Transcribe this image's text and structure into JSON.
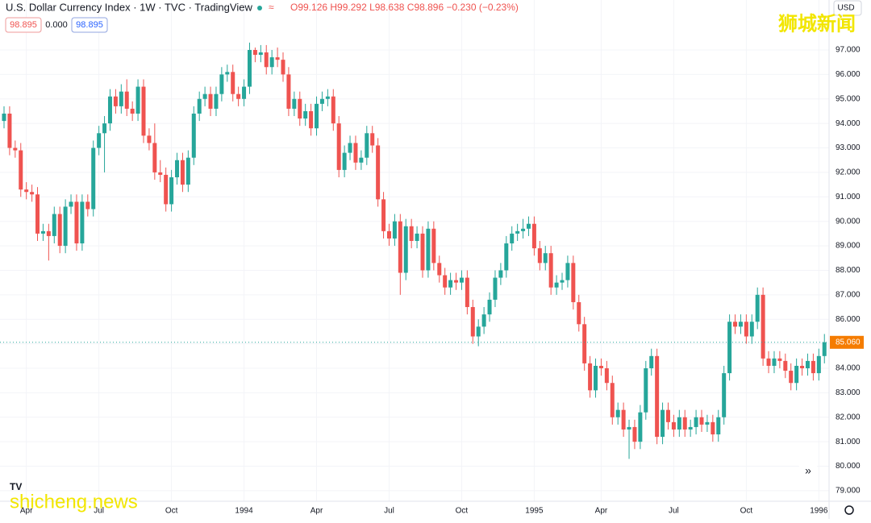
{
  "chart_data": {
    "type": "candlestick",
    "title": "U.S. Dollar Currency Index · 1W · TVC · TradingView",
    "ohlc_text": "O99.126 H99.292 L98.638 C98.896 −0.230 (−0.23%)",
    "boxes": [
      "98.895",
      "0.000",
      "98.895"
    ],
    "currency": "USD",
    "last_label": "85.060",
    "watermark_cn": "狮城新闻",
    "watermark_en": "shicheng.news",
    "up_color": "#26a69a",
    "down_color": "#ef5350",
    "grid": true,
    "ylim": [
      78.57,
      99.04
    ],
    "yticks": [
      {
        "value": 79,
        "label": "79.000"
      },
      {
        "value": 80,
        "label": "80.000"
      },
      {
        "value": 81,
        "label": "81.000"
      },
      {
        "value": 82,
        "label": "82.000"
      },
      {
        "value": 83,
        "label": "83.000"
      },
      {
        "value": 84,
        "label": "84.000"
      },
      {
        "value": 85,
        "label": "85.000"
      },
      {
        "value": 86,
        "label": "86.000"
      },
      {
        "value": 87,
        "label": "87.000"
      },
      {
        "value": 88,
        "label": "88.000"
      },
      {
        "value": 89,
        "label": "89.000"
      },
      {
        "value": 90,
        "label": "90.000"
      },
      {
        "value": 91,
        "label": "91.000"
      },
      {
        "value": 92,
        "label": "92.000"
      },
      {
        "value": 93,
        "label": "93.000"
      },
      {
        "value": 94,
        "label": "94.000"
      },
      {
        "value": 95,
        "label": "95.000"
      },
      {
        "value": 96,
        "label": "96.000"
      },
      {
        "value": 97,
        "label": "97.000"
      }
    ],
    "categories": [
      null,
      null,
      null,
      null,
      "Apr",
      null,
      null,
      null,
      null,
      null,
      null,
      null,
      null,
      null,
      null,
      null,
      null,
      "Jul",
      null,
      null,
      null,
      null,
      null,
      null,
      null,
      null,
      null,
      null,
      null,
      null,
      "Oct",
      null,
      null,
      null,
      null,
      null,
      null,
      null,
      null,
      null,
      null,
      null,
      null,
      "1994",
      null,
      null,
      null,
      null,
      null,
      null,
      null,
      null,
      null,
      null,
      null,
      null,
      "Apr",
      null,
      null,
      null,
      null,
      null,
      null,
      null,
      null,
      null,
      null,
      null,
      null,
      "Jul",
      null,
      null,
      null,
      null,
      null,
      null,
      null,
      null,
      null,
      null,
      null,
      null,
      "Oct",
      null,
      null,
      null,
      null,
      null,
      null,
      null,
      null,
      null,
      null,
      null,
      null,
      "1995",
      null,
      null,
      null,
      null,
      null,
      null,
      null,
      null,
      null,
      null,
      null,
      "Apr",
      null,
      null,
      null,
      null,
      null,
      null,
      null,
      null,
      null,
      null,
      null,
      null,
      "Jul",
      null,
      null,
      null,
      null,
      null,
      null,
      null,
      null,
      null,
      null,
      null,
      null,
      "Oct",
      null,
      null,
      null,
      null,
      null,
      null,
      null,
      null,
      null,
      null,
      null,
      null,
      "1996",
      null
    ],
    "candles": [
      [
        94.1,
        94.7,
        93.8,
        94.4
      ],
      [
        94.4,
        94.7,
        92.7,
        93.0
      ],
      [
        93.0,
        93.3,
        92.6,
        92.9
      ],
      [
        92.9,
        93.2,
        91.0,
        91.3
      ],
      [
        91.3,
        91.6,
        90.9,
        91.2
      ],
      [
        91.2,
        91.5,
        90.8,
        91.1
      ],
      [
        91.1,
        91.4,
        89.2,
        89.5
      ],
      [
        89.5,
        89.9,
        89.2,
        89.6
      ],
      [
        89.6,
        89.9,
        88.4,
        89.4
      ],
      [
        89.4,
        90.6,
        89.1,
        90.3
      ],
      [
        90.3,
        90.6,
        88.7,
        89.0
      ],
      [
        89.0,
        90.9,
        88.7,
        90.6
      ],
      [
        90.6,
        91.1,
        90.3,
        90.8
      ],
      [
        90.8,
        91.1,
        88.8,
        89.1
      ],
      [
        89.1,
        91.1,
        88.8,
        90.8
      ],
      [
        90.8,
        91.1,
        90.2,
        90.5
      ],
      [
        90.5,
        93.3,
        90.2,
        93.0
      ],
      [
        93.0,
        93.9,
        92.7,
        93.6
      ],
      [
        93.6,
        94.3,
        92.0,
        94.0
      ],
      [
        94.0,
        95.4,
        93.7,
        95.1
      ],
      [
        95.1,
        95.4,
        94.4,
        94.7
      ],
      [
        94.7,
        95.6,
        94.4,
        95.3
      ],
      [
        95.3,
        95.8,
        94.3,
        94.6
      ],
      [
        94.6,
        94.9,
        94.1,
        94.4
      ],
      [
        94.4,
        95.8,
        94.1,
        95.5
      ],
      [
        95.5,
        95.8,
        93.2,
        93.5
      ],
      [
        93.5,
        93.8,
        92.9,
        93.2
      ],
      [
        93.2,
        94.0,
        91.7,
        92.0
      ],
      [
        92.0,
        92.5,
        91.6,
        91.9
      ],
      [
        91.9,
        92.2,
        90.4,
        90.7
      ],
      [
        90.7,
        92.1,
        90.4,
        91.8
      ],
      [
        91.8,
        92.8,
        91.5,
        92.5
      ],
      [
        92.5,
        92.8,
        91.2,
        91.5
      ],
      [
        91.5,
        92.9,
        91.2,
        92.6
      ],
      [
        92.6,
        94.7,
        92.3,
        94.4
      ],
      [
        94.4,
        95.3,
        94.1,
        95.0
      ],
      [
        95.0,
        95.5,
        94.7,
        95.2
      ],
      [
        95.2,
        95.5,
        94.3,
        94.6
      ],
      [
        94.6,
        95.5,
        94.3,
        95.2
      ],
      [
        95.2,
        96.3,
        94.9,
        96.0
      ],
      [
        96.0,
        96.4,
        95.7,
        96.1
      ],
      [
        96.1,
        96.4,
        94.9,
        95.2
      ],
      [
        95.2,
        95.5,
        94.7,
        95.0
      ],
      [
        95.0,
        95.8,
        94.7,
        95.5
      ],
      [
        95.5,
        97.3,
        95.2,
        97.0
      ],
      [
        97.0,
        97.1,
        96.5,
        96.8
      ],
      [
        96.8,
        97.2,
        96.5,
        96.9
      ],
      [
        96.9,
        97.2,
        96.0,
        96.3
      ],
      [
        96.3,
        97.0,
        96.0,
        96.7
      ],
      [
        96.7,
        97.1,
        96.3,
        96.6
      ],
      [
        96.6,
        96.9,
        95.7,
        96.0
      ],
      [
        96.0,
        96.3,
        94.3,
        94.6
      ],
      [
        94.6,
        95.3,
        94.3,
        95.0
      ],
      [
        95.0,
        95.3,
        93.9,
        94.2
      ],
      [
        94.2,
        94.8,
        93.9,
        94.5
      ],
      [
        94.5,
        94.8,
        93.5,
        93.8
      ],
      [
        93.8,
        95.1,
        93.5,
        94.8
      ],
      [
        94.8,
        95.3,
        94.5,
        95.0
      ],
      [
        95.0,
        95.4,
        94.7,
        95.1
      ],
      [
        95.1,
        95.4,
        93.7,
        94.0
      ],
      [
        94.0,
        94.3,
        91.8,
        92.1
      ],
      [
        92.1,
        93.1,
        91.8,
        92.8
      ],
      [
        92.8,
        93.5,
        92.5,
        93.2
      ],
      [
        93.2,
        93.5,
        92.1,
        92.4
      ],
      [
        92.4,
        92.9,
        92.1,
        92.6
      ],
      [
        92.6,
        93.9,
        92.3,
        93.6
      ],
      [
        93.6,
        93.9,
        92.8,
        93.1
      ],
      [
        93.1,
        93.4,
        90.6,
        90.9
      ],
      [
        90.9,
        91.2,
        89.3,
        89.6
      ],
      [
        89.6,
        89.9,
        89.0,
        89.3
      ],
      [
        89.3,
        90.3,
        89.0,
        90.0
      ],
      [
        90.0,
        90.3,
        87.0,
        87.9
      ],
      [
        87.9,
        90.1,
        87.6,
        89.8
      ],
      [
        89.8,
        90.1,
        88.9,
        89.2
      ],
      [
        89.2,
        89.8,
        88.9,
        89.5
      ],
      [
        89.5,
        89.8,
        87.7,
        88.0
      ],
      [
        88.0,
        90.0,
        87.7,
        89.7
      ],
      [
        89.7,
        90.0,
        88.0,
        88.3
      ],
      [
        88.3,
        88.6,
        87.5,
        87.8
      ],
      [
        87.8,
        88.1,
        87.0,
        87.3
      ],
      [
        87.3,
        87.9,
        87.0,
        87.6
      ],
      [
        87.6,
        87.9,
        87.2,
        87.5
      ],
      [
        87.5,
        88.0,
        87.2,
        87.7
      ],
      [
        87.7,
        88.0,
        86.2,
        86.5
      ],
      [
        86.5,
        86.8,
        85.0,
        85.3
      ],
      [
        85.3,
        86.0,
        84.9,
        85.7
      ],
      [
        85.7,
        86.5,
        85.4,
        86.2
      ],
      [
        86.2,
        87.1,
        85.9,
        86.8
      ],
      [
        86.8,
        88.0,
        86.5,
        87.7
      ],
      [
        87.7,
        88.3,
        87.4,
        88.0
      ],
      [
        88.0,
        89.4,
        87.7,
        89.1
      ],
      [
        89.1,
        89.8,
        88.8,
        89.5
      ],
      [
        89.5,
        89.9,
        89.2,
        89.6
      ],
      [
        89.6,
        90.1,
        89.3,
        89.7
      ],
      [
        89.7,
        90.2,
        89.4,
        89.9
      ],
      [
        89.9,
        90.2,
        88.6,
        88.9
      ],
      [
        88.9,
        89.2,
        88.0,
        88.3
      ],
      [
        88.3,
        89.0,
        88.0,
        88.7
      ],
      [
        88.7,
        89.0,
        87.0,
        87.3
      ],
      [
        87.3,
        87.8,
        87.0,
        87.5
      ],
      [
        87.5,
        87.9,
        87.2,
        87.6
      ],
      [
        87.6,
        88.6,
        87.3,
        88.3
      ],
      [
        88.3,
        88.6,
        86.4,
        86.7
      ],
      [
        86.7,
        87.0,
        85.5,
        85.8
      ],
      [
        85.8,
        86.1,
        83.9,
        84.2
      ],
      [
        84.2,
        84.5,
        82.8,
        83.1
      ],
      [
        83.1,
        84.4,
        82.8,
        84.1
      ],
      [
        84.1,
        84.4,
        83.7,
        84.0
      ],
      [
        84.0,
        84.3,
        83.1,
        83.4
      ],
      [
        83.4,
        83.7,
        81.7,
        82.0
      ],
      [
        82.0,
        82.6,
        81.7,
        82.3
      ],
      [
        82.3,
        82.6,
        81.2,
        81.5
      ],
      [
        81.5,
        81.9,
        80.3,
        81.6
      ],
      [
        81.6,
        81.9,
        80.7,
        81.0
      ],
      [
        81.0,
        82.5,
        80.7,
        82.2
      ],
      [
        82.2,
        84.3,
        81.9,
        84.0
      ],
      [
        84.0,
        84.8,
        83.7,
        84.5
      ],
      [
        84.5,
        84.8,
        80.9,
        81.2
      ],
      [
        81.2,
        82.6,
        80.9,
        82.3
      ],
      [
        82.3,
        82.6,
        81.5,
        81.8
      ],
      [
        81.8,
        82.1,
        81.2,
        81.5
      ],
      [
        81.5,
        82.3,
        81.2,
        82.0
      ],
      [
        82.0,
        82.3,
        81.2,
        81.5
      ],
      [
        81.5,
        81.9,
        81.2,
        81.6
      ],
      [
        81.6,
        82.3,
        81.3,
        82.0
      ],
      [
        82.0,
        82.3,
        81.4,
        81.7
      ],
      [
        81.7,
        82.1,
        81.4,
        81.8
      ],
      [
        81.8,
        82.1,
        81.0,
        81.3
      ],
      [
        81.3,
        82.3,
        81.0,
        82.0
      ],
      [
        82.0,
        84.1,
        81.7,
        83.8
      ],
      [
        83.8,
        86.2,
        83.5,
        85.9
      ],
      [
        85.9,
        86.2,
        85.4,
        85.7
      ],
      [
        85.7,
        86.2,
        85.4,
        85.9
      ],
      [
        85.9,
        86.2,
        85.0,
        85.3
      ],
      [
        85.3,
        86.2,
        85.0,
        85.9
      ],
      [
        85.9,
        87.3,
        85.6,
        87.0
      ],
      [
        87.0,
        87.3,
        84.1,
        84.4
      ],
      [
        84.4,
        84.7,
        83.8,
        84.1
      ],
      [
        84.1,
        84.7,
        83.8,
        84.4
      ],
      [
        84.4,
        84.7,
        84.0,
        84.3
      ],
      [
        84.3,
        84.6,
        83.6,
        83.9
      ],
      [
        83.9,
        84.2,
        83.1,
        83.4
      ],
      [
        83.4,
        84.4,
        83.1,
        84.1
      ],
      [
        84.1,
        84.4,
        83.7,
        84.0
      ],
      [
        84.0,
        84.6,
        83.7,
        84.3
      ],
      [
        84.3,
        84.6,
        83.5,
        83.8
      ],
      [
        83.8,
        84.8,
        83.5,
        84.5
      ],
      [
        84.5,
        85.4,
        84.2,
        85.06
      ]
    ]
  }
}
